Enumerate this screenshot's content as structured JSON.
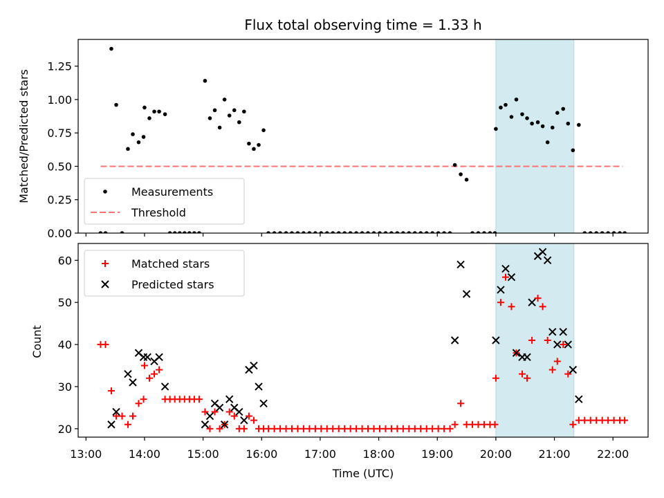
{
  "chart_data": [
    {
      "type": "scatter",
      "title": "Flux total observing time = 1.33 h",
      "xlabel": "",
      "ylabel": "Matched/Predicted stars",
      "xlim": [
        "12:52",
        "22:36"
      ],
      "ylim": [
        0,
        1.45
      ],
      "yticks": [
        "0.00",
        "0.25",
        "0.50",
        "0.75",
        "1.00",
        "1.25"
      ],
      "highlight_span": {
        "start": "20:00",
        "end": "21:20",
        "color": "#d3eaf0"
      },
      "legend": {
        "position": "lower-left",
        "entries": [
          "Measurements",
          "Threshold"
        ]
      },
      "threshold": {
        "name": "Threshold",
        "value": 0.5,
        "x_start": "13:15",
        "x_end": "22:10",
        "color": "#ff7070"
      },
      "series": [
        {
          "name": "Measurements",
          "color": "#000000",
          "points": [
            [
              "13:15",
              0
            ],
            [
              "13:20",
              0
            ],
            [
              "13:26",
              1.38
            ],
            [
              "13:31",
              0.96
            ],
            [
              "13:37",
              0
            ],
            [
              "13:43",
              0.63
            ],
            [
              "13:48",
              0.74
            ],
            [
              "13:54",
              0.68
            ],
            [
              "13:59",
              0.72
            ],
            [
              "14:00",
              0.94
            ],
            [
              "14:05",
              0.86
            ],
            [
              "14:10",
              0.91
            ],
            [
              "14:15",
              0.91
            ],
            [
              "14:21",
              0.89
            ],
            [
              "14:26",
              0
            ],
            [
              "14:31",
              0
            ],
            [
              "14:36",
              0
            ],
            [
              "14:41",
              0
            ],
            [
              "14:46",
              0
            ],
            [
              "14:51",
              0
            ],
            [
              "14:56",
              0
            ],
            [
              "15:02",
              1.14
            ],
            [
              "15:07",
              0.86
            ],
            [
              "15:12",
              0.92
            ],
            [
              "15:17",
              0.79
            ],
            [
              "15:22",
              1.0
            ],
            [
              "15:27",
              0.88
            ],
            [
              "15:32",
              0.92
            ],
            [
              "15:37",
              0.83
            ],
            [
              "15:42",
              0.91
            ],
            [
              "15:47",
              0.67
            ],
            [
              "15:52",
              0.63
            ],
            [
              "15:57",
              0.66
            ],
            [
              "16:02",
              0.77
            ],
            [
              "16:07",
              0
            ],
            [
              "16:13",
              0
            ],
            [
              "16:19",
              0
            ],
            [
              "16:25",
              0
            ],
            [
              "16:31",
              0
            ],
            [
              "16:37",
              0
            ],
            [
              "16:43",
              0
            ],
            [
              "16:49",
              0
            ],
            [
              "16:55",
              0
            ],
            [
              "17:01",
              0
            ],
            [
              "17:07",
              0
            ],
            [
              "17:13",
              0
            ],
            [
              "17:19",
              0
            ],
            [
              "17:25",
              0
            ],
            [
              "17:31",
              0
            ],
            [
              "17:37",
              0
            ],
            [
              "17:43",
              0
            ],
            [
              "17:49",
              0
            ],
            [
              "17:55",
              0
            ],
            [
              "18:01",
              0
            ],
            [
              "18:07",
              0
            ],
            [
              "18:13",
              0
            ],
            [
              "18:19",
              0
            ],
            [
              "18:25",
              0
            ],
            [
              "18:31",
              0
            ],
            [
              "18:37",
              0
            ],
            [
              "18:43",
              0
            ],
            [
              "18:49",
              0
            ],
            [
              "18:55",
              0
            ],
            [
              "19:01",
              0
            ],
            [
              "19:07",
              0
            ],
            [
              "19:13",
              0
            ],
            [
              "19:18",
              0.51
            ],
            [
              "19:24",
              0.44
            ],
            [
              "19:30",
              0.4
            ],
            [
              "19:36",
              0
            ],
            [
              "19:42",
              0
            ],
            [
              "19:48",
              0
            ],
            [
              "19:54",
              0
            ],
            [
              "19:59",
              0
            ],
            [
              "20:00",
              0.78
            ],
            [
              "20:05",
              0.94
            ],
            [
              "20:10",
              0.96
            ],
            [
              "20:16",
              0.87
            ],
            [
              "20:21",
              1.0
            ],
            [
              "20:27",
              0.89
            ],
            [
              "20:32",
              0.86
            ],
            [
              "20:37",
              0.82
            ],
            [
              "20:43",
              0.83
            ],
            [
              "20:48",
              0.8
            ],
            [
              "20:53",
              0.68
            ],
            [
              "20:58",
              0.79
            ],
            [
              "21:03",
              0.9
            ],
            [
              "21:09",
              0.93
            ],
            [
              "21:14",
              0.82
            ],
            [
              "21:19",
              0.62
            ],
            [
              "21:25",
              0.81
            ],
            [
              "21:31",
              0
            ],
            [
              "21:37",
              0
            ],
            [
              "21:43",
              0
            ],
            [
              "21:49",
              0
            ],
            [
              "21:55",
              0
            ],
            [
              "22:01",
              0
            ],
            [
              "22:07",
              0
            ],
            [
              "22:12",
              0
            ]
          ]
        }
      ]
    },
    {
      "type": "scatter",
      "title": "",
      "xlabel": "Time (UTC)",
      "ylabel": "Count",
      "xlim": [
        "12:52",
        "22:36"
      ],
      "ylim": [
        18,
        64
      ],
      "yticks": [
        "20",
        "30",
        "40",
        "50",
        "60"
      ],
      "xticks": [
        "13:00",
        "14:00",
        "15:00",
        "16:00",
        "17:00",
        "18:00",
        "19:00",
        "20:00",
        "21:00",
        "22:00"
      ],
      "highlight_span": {
        "start": "20:00",
        "end": "21:20",
        "color": "#d3eaf0"
      },
      "legend": {
        "position": "top-left",
        "entries": [
          "Matched stars",
          "Predicted stars"
        ]
      },
      "series": [
        {
          "name": "Matched stars",
          "marker": "plus",
          "color": "#ff0000",
          "points": [
            [
              "13:15",
              40
            ],
            [
              "13:20",
              40
            ],
            [
              "13:26",
              29
            ],
            [
              "13:31",
              23
            ],
            [
              "13:37",
              23
            ],
            [
              "13:43",
              21
            ],
            [
              "13:48",
              23
            ],
            [
              "13:54",
              26
            ],
            [
              "13:59",
              27
            ],
            [
              "14:00",
              35
            ],
            [
              "14:05",
              32
            ],
            [
              "14:10",
              33
            ],
            [
              "14:15",
              34
            ],
            [
              "14:21",
              27
            ],
            [
              "14:26",
              27
            ],
            [
              "14:31",
              27
            ],
            [
              "14:36",
              27
            ],
            [
              "14:41",
              27
            ],
            [
              "14:46",
              27
            ],
            [
              "14:51",
              27
            ],
            [
              "14:56",
              27
            ],
            [
              "15:02",
              24
            ],
            [
              "15:07",
              20
            ],
            [
              "15:12",
              24
            ],
            [
              "15:17",
              20
            ],
            [
              "15:22",
              21
            ],
            [
              "15:27",
              24
            ],
            [
              "15:32",
              23
            ],
            [
              "15:37",
              20
            ],
            [
              "15:42",
              20
            ],
            [
              "15:47",
              23
            ],
            [
              "15:52",
              22
            ],
            [
              "15:57",
              20
            ],
            [
              "16:02",
              20
            ],
            [
              "16:07",
              20
            ],
            [
              "16:13",
              20
            ],
            [
              "16:19",
              20
            ],
            [
              "16:25",
              20
            ],
            [
              "16:31",
              20
            ],
            [
              "16:37",
              20
            ],
            [
              "16:43",
              20
            ],
            [
              "16:49",
              20
            ],
            [
              "16:55",
              20
            ],
            [
              "17:01",
              20
            ],
            [
              "17:07",
              20
            ],
            [
              "17:13",
              20
            ],
            [
              "17:19",
              20
            ],
            [
              "17:25",
              20
            ],
            [
              "17:31",
              20
            ],
            [
              "17:37",
              20
            ],
            [
              "17:43",
              20
            ],
            [
              "17:49",
              20
            ],
            [
              "17:55",
              20
            ],
            [
              "18:01",
              20
            ],
            [
              "18:07",
              20
            ],
            [
              "18:13",
              20
            ],
            [
              "18:19",
              20
            ],
            [
              "18:25",
              20
            ],
            [
              "18:31",
              20
            ],
            [
              "18:37",
              20
            ],
            [
              "18:43",
              20
            ],
            [
              "18:49",
              20
            ],
            [
              "18:55",
              20
            ],
            [
              "19:01",
              20
            ],
            [
              "19:07",
              20
            ],
            [
              "19:13",
              20
            ],
            [
              "19:18",
              21
            ],
            [
              "19:24",
              26
            ],
            [
              "19:30",
              21
            ],
            [
              "19:36",
              21
            ],
            [
              "19:42",
              21
            ],
            [
              "19:48",
              21
            ],
            [
              "19:54",
              21
            ],
            [
              "19:59",
              21
            ],
            [
              "20:00",
              32
            ],
            [
              "20:05",
              50
            ],
            [
              "20:10",
              56
            ],
            [
              "20:16",
              49
            ],
            [
              "20:21",
              38
            ],
            [
              "20:27",
              33
            ],
            [
              "20:32",
              32
            ],
            [
              "20:37",
              41
            ],
            [
              "20:43",
              51
            ],
            [
              "20:48",
              49
            ],
            [
              "20:53",
              41
            ],
            [
              "20:58",
              34
            ],
            [
              "21:03",
              36
            ],
            [
              "21:09",
              40
            ],
            [
              "21:14",
              33
            ],
            [
              "21:19",
              21
            ],
            [
              "21:25",
              22
            ],
            [
              "21:31",
              22
            ],
            [
              "21:37",
              22
            ],
            [
              "21:43",
              22
            ],
            [
              "21:49",
              22
            ],
            [
              "21:55",
              22
            ],
            [
              "22:01",
              22
            ],
            [
              "22:07",
              22
            ],
            [
              "22:12",
              22
            ]
          ]
        },
        {
          "name": "Predicted stars",
          "marker": "x",
          "color": "#000000",
          "points": [
            [
              "13:26",
              21
            ],
            [
              "13:31",
              24
            ],
            [
              "13:43",
              33
            ],
            [
              "13:48",
              31
            ],
            [
              "13:54",
              38
            ],
            [
              "13:59",
              37
            ],
            [
              "14:03",
              37
            ],
            [
              "14:10",
              36
            ],
            [
              "14:15",
              37
            ],
            [
              "14:21",
              30
            ],
            [
              "15:02",
              21
            ],
            [
              "15:07",
              23
            ],
            [
              "15:12",
              26
            ],
            [
              "15:17",
              25
            ],
            [
              "15:22",
              21
            ],
            [
              "15:27",
              27
            ],
            [
              "15:32",
              25
            ],
            [
              "15:37",
              24
            ],
            [
              "15:42",
              22
            ],
            [
              "15:47",
              34
            ],
            [
              "15:52",
              35
            ],
            [
              "15:57",
              30
            ],
            [
              "16:02",
              26
            ],
            [
              "19:18",
              41
            ],
            [
              "19:24",
              59
            ],
            [
              "19:30",
              52
            ],
            [
              "20:00",
              41
            ],
            [
              "20:05",
              53
            ],
            [
              "20:10",
              58
            ],
            [
              "20:16",
              56
            ],
            [
              "20:21",
              38
            ],
            [
              "20:27",
              37
            ],
            [
              "20:32",
              37
            ],
            [
              "20:37",
              50
            ],
            [
              "20:43",
              61
            ],
            [
              "20:48",
              62
            ],
            [
              "20:53",
              60
            ],
            [
              "20:58",
              43
            ],
            [
              "21:03",
              40
            ],
            [
              "21:09",
              43
            ],
            [
              "21:14",
              40
            ],
            [
              "21:19",
              34
            ],
            [
              "21:25",
              27
            ]
          ]
        }
      ]
    }
  ]
}
